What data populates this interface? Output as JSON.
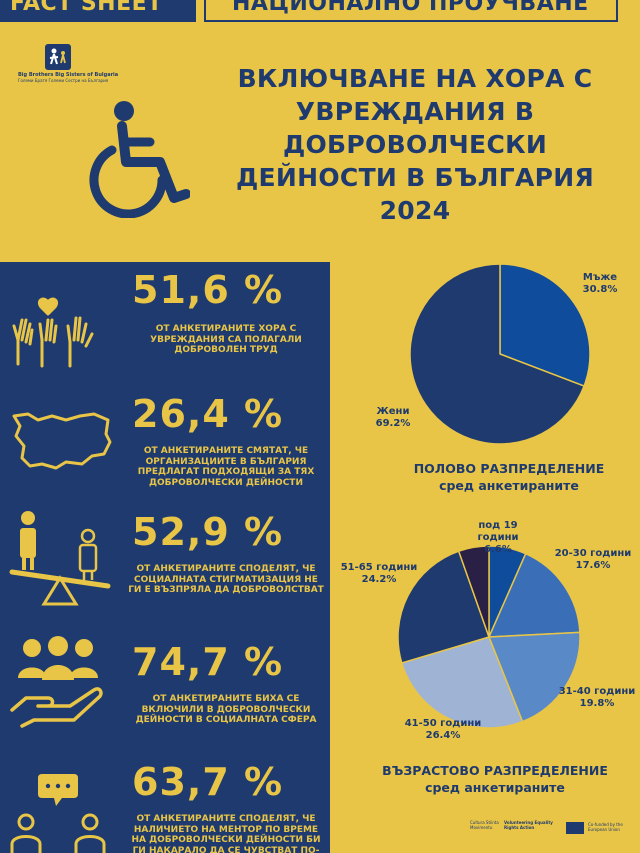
{
  "header": {
    "tab_left": "FACT SHEET",
    "tab_right": "НАЦИОНАЛНО ПРОУЧВАНЕ"
  },
  "logo": {
    "name": "Big Brothers Big Sisters of Bulgaria",
    "sub": "Големи Братя Големи Сестри на България"
  },
  "title": {
    "line1": "ВКЛЮЧВАНЕ НА ХОРА С",
    "line2": "УВРЕЖДАНИЯ В",
    "line3": "ДОБРОВОЛЧЕСКИ",
    "line4": "ДЕЙНОСТИ В БЪЛГАРИЯ",
    "line5": "2024"
  },
  "stats": [
    {
      "icon": "raised-hands-icon",
      "pct": "51,6 %",
      "desc": "ОТ АНКЕТИРАНИТЕ ХОРА С УВРЕЖДАНИЯ СА ПОЛАГАЛИ ДОБРОВОЛЕН ТРУД"
    },
    {
      "icon": "bulgaria-map-icon",
      "pct": "26,4 %",
      "desc": "ОТ АНКЕТИРАНИТЕ СМЯТАТ, ЧЕ ОРГАНИЗАЦИИТЕ В БЪЛГАРИЯ ПРЕДЛАГАТ ПОДХОДЯЩИ ЗА ТЯХ ДОБРОВОЛЧЕСКИ ДЕЙНОСТИ"
    },
    {
      "icon": "seesaw-people-icon",
      "pct": "52,9 %",
      "desc": "ОТ АНКЕТИРАНИТЕ СПОДЕЛЯТ, ЧЕ СОЦИАЛНАТА СТИГМАТИЗАЦИЯ НЕ ГИ Е ВЪЗПРЯЛА ДА ДОБРОВОЛСТВАТ"
    },
    {
      "icon": "hand-holding-people-icon",
      "pct": "74,7 %",
      "desc": "ОТ АНКЕТИРАНИТЕ БИХА СЕ ВКЛЮЧИЛИ В ДОБРОВОЛЧЕСКИ ДЕЙНОСТИ В СОЦИАЛНАТА СФЕРА"
    },
    {
      "icon": "mentor-chat-icon",
      "pct": "63,7 %",
      "desc": "ОТ АНКЕТИРАНИТЕ СПОДЕЛЯТ, ЧЕ НАЛИЧИЕТО НА МЕНТОР ПО ВРЕМЕ НА ДОБРОВОЛЧЕСКИ ДЕЙНОСТИ БИ ГИ НАКАРАЛО ДА СЕ ЧУВСТВАТ ПО-ПОДКРЕПЕНИ"
    }
  ],
  "chart_data": [
    {
      "type": "pie",
      "title": "ПОЛОВО РАЗПРЕДЕЛЕНИЕ",
      "subtitle": "сред анкетираните",
      "slices": [
        {
          "label": "Мъже",
          "value": 30.8,
          "value_text": "30.8%",
          "color": "#0f4c9c"
        },
        {
          "label": "Жени",
          "value": 69.2,
          "value_text": "69.2%",
          "color": "#1e3a6e"
        }
      ]
    },
    {
      "type": "pie",
      "title": "ВЪЗРАСТОВО РАЗПРЕДЕЛЕНИЕ",
      "subtitle": "сред анкетираните",
      "slices": [
        {
          "label": "под 19 години",
          "value": 6.6,
          "value_text": "6.6%",
          "color": "#0f4c9c"
        },
        {
          "label": "20-30 години",
          "value": 17.6,
          "value_text": "17.6%",
          "color": "#3a6fb8"
        },
        {
          "label": "31-40 години",
          "value": 19.8,
          "value_text": "19.8%",
          "color": "#5a89c8"
        },
        {
          "label": "41-50 години",
          "value": 26.4,
          "value_text": "26.4%",
          "color": "#9fb4d4"
        },
        {
          "label": "51-65 години",
          "value": 24.2,
          "value_text": "24.2%",
          "color": "#1e3a6e"
        },
        {
          "label": "",
          "value": 5.4,
          "value_text": "",
          "color": "#2a1f44"
        }
      ]
    }
  ],
  "footer": {
    "partner1": "Cultura Stiinta Movimentu",
    "partner2": "Volunteering Equality Rights Action",
    "eu": "Co-funded by the European Union"
  },
  "colors": {
    "navy": "#1e3a6e",
    "yellow": "#e8c547"
  }
}
